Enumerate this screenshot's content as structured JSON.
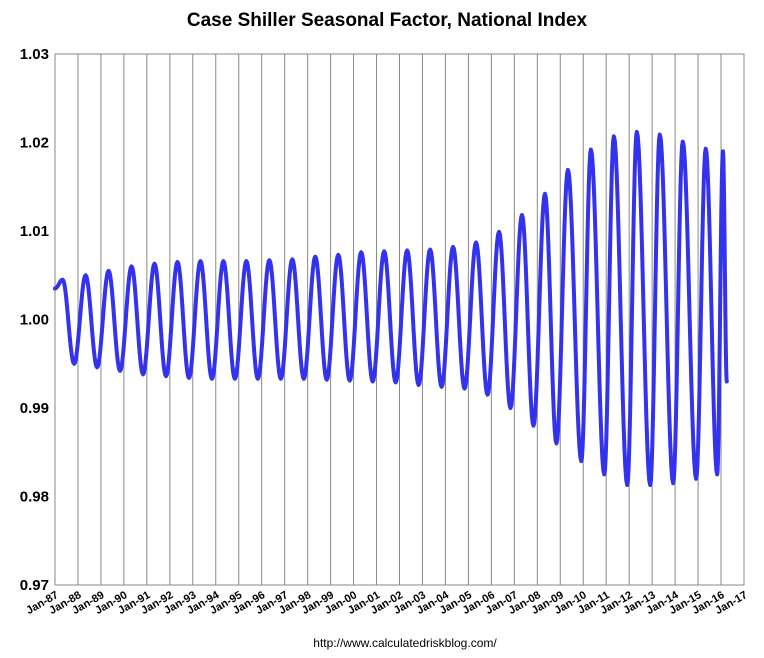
{
  "chart_data": {
    "type": "line",
    "title": "Case Shiller Seasonal Factor, National Index",
    "source": "http://www.calculatedriskblog.com/",
    "xlabel": "",
    "ylabel": "",
    "ylim": [
      0.97,
      1.03
    ],
    "yticks": [
      "0.97",
      "0.98",
      "0.99",
      "1.00",
      "1.01",
      "1.02",
      "1.03"
    ],
    "xlim": [
      "1987-01",
      "2017-01"
    ],
    "xticks": [
      "Jan-87",
      "Jan-88",
      "Jan-89",
      "Jan-90",
      "Jan-91",
      "Jan-92",
      "Jan-93",
      "Jan-94",
      "Jan-95",
      "Jan-96",
      "Jan-97",
      "Jan-98",
      "Jan-99",
      "Jan-00",
      "Jan-01",
      "Jan-02",
      "Jan-03",
      "Jan-04",
      "Jan-05",
      "Jan-06",
      "Jan-07",
      "Jan-08",
      "Jan-09",
      "Jan-10",
      "Jan-11",
      "Jan-12",
      "Jan-13",
      "Jan-14",
      "Jan-15",
      "Jan-16",
      "Jan-17"
    ],
    "grid": "vertical",
    "line_color": "#3333ee",
    "series": [
      {
        "name": "",
        "note": "yearly peak (around May) and trough (around Nov-Dec) of the seasonal factor",
        "start": "1987-01",
        "start_value": 1.0035,
        "end": "2016-04",
        "end_value": 0.993,
        "peaks": [
          [
            "1987-05",
            1.0045
          ],
          [
            "1988-05",
            1.005
          ],
          [
            "1989-05",
            1.0055
          ],
          [
            "1990-05",
            1.006
          ],
          [
            "1991-05",
            1.0063
          ],
          [
            "1992-05",
            1.0065
          ],
          [
            "1993-05",
            1.0066
          ],
          [
            "1994-05",
            1.0066
          ],
          [
            "1995-05",
            1.0066
          ],
          [
            "1996-05",
            1.0067
          ],
          [
            "1997-05",
            1.0068
          ],
          [
            "1998-05",
            1.0071
          ],
          [
            "1999-05",
            1.0073
          ],
          [
            "2000-05",
            1.0076
          ],
          [
            "2001-05",
            1.0077
          ],
          [
            "2002-05",
            1.0078
          ],
          [
            "2003-05",
            1.0079
          ],
          [
            "2004-05",
            1.0082
          ],
          [
            "2005-05",
            1.0087
          ],
          [
            "2006-05",
            1.0099
          ],
          [
            "2007-05",
            1.0118
          ],
          [
            "2008-05",
            1.0142
          ],
          [
            "2009-05",
            1.0169
          ],
          [
            "2010-05",
            1.0192
          ],
          [
            "2011-05",
            1.0207
          ],
          [
            "2012-05",
            1.0212
          ],
          [
            "2013-05",
            1.0209
          ],
          [
            "2014-05",
            1.0201
          ],
          [
            "2015-05",
            1.0193
          ],
          [
            "2016-02",
            1.019
          ]
        ],
        "troughs": [
          [
            "1987-11",
            0.995
          ],
          [
            "1988-11",
            0.9946
          ],
          [
            "1989-11",
            0.9942
          ],
          [
            "1990-11",
            0.9938
          ],
          [
            "1991-11",
            0.9936
          ],
          [
            "1992-11",
            0.9934
          ],
          [
            "1993-11",
            0.9933
          ],
          [
            "1994-11",
            0.9933
          ],
          [
            "1995-11",
            0.9933
          ],
          [
            "1996-11",
            0.9933
          ],
          [
            "1997-11",
            0.9933
          ],
          [
            "1998-11",
            0.9932
          ],
          [
            "1999-11",
            0.9931
          ],
          [
            "2000-11",
            0.993
          ],
          [
            "2001-11",
            0.9929
          ],
          [
            "2002-11",
            0.9926
          ],
          [
            "2003-11",
            0.9924
          ],
          [
            "2004-11",
            0.9922
          ],
          [
            "2005-11",
            0.9915
          ],
          [
            "2006-11",
            0.99
          ],
          [
            "2007-11",
            0.988
          ],
          [
            "2008-11",
            0.986
          ],
          [
            "2009-12",
            0.984
          ],
          [
            "2010-12",
            0.9825
          ],
          [
            "2011-12",
            0.9813
          ],
          [
            "2012-12",
            0.9813
          ],
          [
            "2013-12",
            0.9815
          ],
          [
            "2014-12",
            0.982
          ],
          [
            "2015-11",
            0.9825
          ]
        ]
      }
    ]
  }
}
